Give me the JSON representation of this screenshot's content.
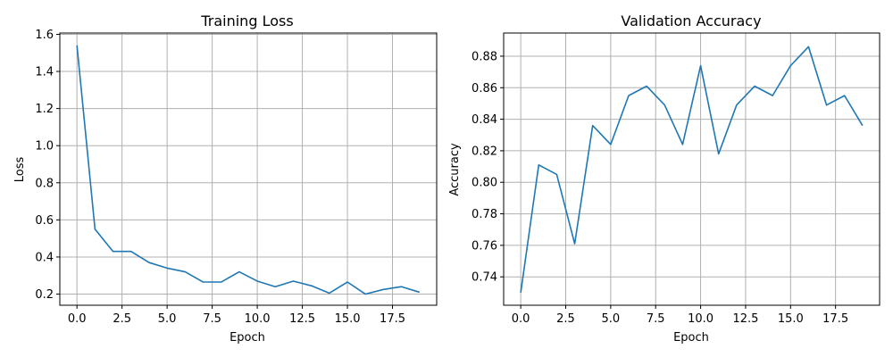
{
  "chart_data": [
    {
      "type": "line",
      "title": "Training Loss",
      "xlabel": "Epoch",
      "ylabel": "Loss",
      "x": [
        0,
        1,
        2,
        3,
        4,
        5,
        6,
        7,
        8,
        9,
        10,
        11,
        12,
        13,
        14,
        15,
        16,
        17,
        18,
        19
      ],
      "series": [
        {
          "values": [
            1.54,
            0.55,
            0.43,
            0.43,
            0.37,
            0.34,
            0.32,
            0.265,
            0.265,
            0.32,
            0.27,
            0.24,
            0.27,
            0.245,
            0.205,
            0.265,
            0.2,
            0.225,
            0.24,
            0.21
          ]
        }
      ],
      "xlim": [
        -0.95,
        19.95
      ],
      "ylim": [
        0.14,
        1.607
      ],
      "xticks": [
        0,
        2.5,
        5,
        7.5,
        10,
        12.5,
        15,
        17.5
      ],
      "xtick_labels": [
        "0.0",
        "2.5",
        "5.0",
        "7.5",
        "10.0",
        "12.5",
        "15.0",
        "17.5"
      ],
      "yticks": [
        0.2,
        0.4,
        0.6,
        0.8,
        1.0,
        1.2,
        1.4,
        1.6
      ],
      "ytick_labels": [
        "0.2",
        "0.4",
        "0.6",
        "0.8",
        "1.0",
        "1.2",
        "1.4",
        "1.6"
      ],
      "grid": true,
      "color": "#1f77b4"
    },
    {
      "type": "line",
      "title": "Validation Accuracy",
      "xlabel": "Epoch",
      "ylabel": "Accuracy",
      "x": [
        0,
        1,
        2,
        3,
        4,
        5,
        6,
        7,
        8,
        9,
        10,
        11,
        12,
        13,
        14,
        15,
        16,
        17,
        18,
        19
      ],
      "series": [
        {
          "values": [
            0.73,
            0.811,
            0.805,
            0.761,
            0.836,
            0.824,
            0.855,
            0.861,
            0.849,
            0.824,
            0.874,
            0.818,
            0.849,
            0.861,
            0.855,
            0.874,
            0.886,
            0.849,
            0.855,
            0.836
          ]
        }
      ],
      "xlim": [
        -0.95,
        19.95
      ],
      "ylim": [
        0.722,
        0.8947
      ],
      "xticks": [
        0,
        2.5,
        5,
        7.5,
        10,
        12.5,
        15,
        17.5
      ],
      "xtick_labels": [
        "0.0",
        "2.5",
        "5.0",
        "7.5",
        "10.0",
        "12.5",
        "15.0",
        "17.5"
      ],
      "yticks": [
        0.74,
        0.76,
        0.78,
        0.8,
        0.82,
        0.84,
        0.86,
        0.88
      ],
      "ytick_labels": [
        "0.74",
        "0.76",
        "0.78",
        "0.80",
        "0.82",
        "0.84",
        "0.86",
        "0.88"
      ],
      "grid": true,
      "color": "#1f77b4"
    }
  ]
}
